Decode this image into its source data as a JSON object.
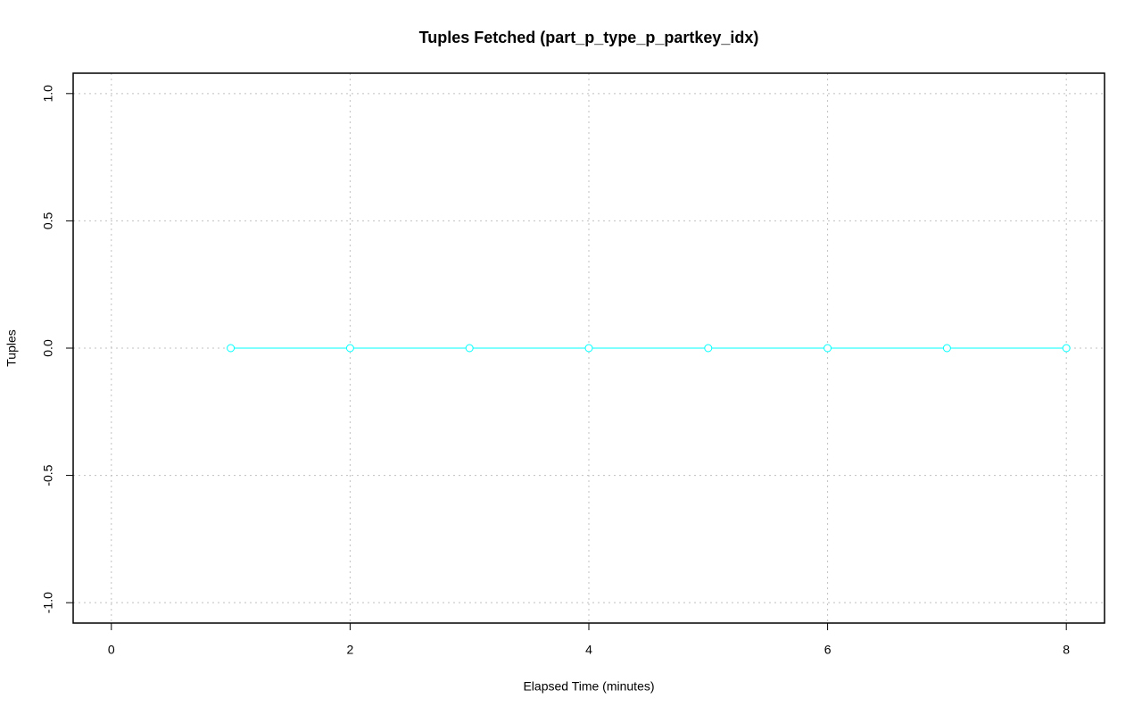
{
  "chart_data": {
    "type": "line",
    "title": "Tuples Fetched (part_p_type_p_partkey_idx)",
    "x_label": "Elapsed Time (minutes)",
    "y_label": "Tuples",
    "x": [
      1,
      2,
      3,
      4,
      5,
      6,
      7,
      8
    ],
    "series": [
      {
        "color": "#00ffff",
        "values": [
          0,
          0,
          0,
          0,
          0,
          0,
          0,
          0
        ]
      }
    ],
    "xlim": [
      -0.32,
      8.32
    ],
    "xticks": [
      0,
      2,
      4,
      6,
      8
    ],
    "ylim": [
      -1.08,
      1.08
    ],
    "yticks": [
      {
        "value": -1,
        "label": "-1.0"
      },
      -0.5,
      {
        "value": 0,
        "label": "0.0"
      },
      0.5,
      {
        "value": 1,
        "label": "1.0"
      }
    ],
    "grid": true
  }
}
